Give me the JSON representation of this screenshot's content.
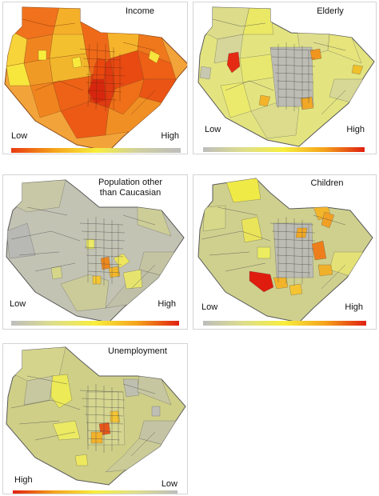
{
  "figure": {
    "panels": [
      {
        "id": "income",
        "title_lines": [
          "Income"
        ],
        "legend_left": "Low",
        "legend_right": "High",
        "ramp": [
          "#e83a10",
          "#f5a21c",
          "#f7ee3c",
          "#cfcfa0",
          "#bdbdbd"
        ],
        "base_fill": "#f2a43a",
        "line_color": "#8a4a1c"
      },
      {
        "id": "elderly",
        "title_lines": [
          "Elderly"
        ],
        "legend_left": "Low",
        "legend_right": "High",
        "ramp": [
          "#bdbdbd",
          "#dede8c",
          "#f7ee3c",
          "#f5a21c",
          "#e02010"
        ],
        "base_fill": "#e3e480",
        "line_color": "#5a5a5a"
      },
      {
        "id": "non-caucasian",
        "title_lines": [
          "Population other",
          "than Caucasian"
        ],
        "legend_left": "Low",
        "legend_right": "High",
        "ramp": [
          "#bdbdbd",
          "#dede8c",
          "#f7ee3c",
          "#f5a21c",
          "#e02010"
        ],
        "base_fill": "#c3c3b4",
        "line_color": "#5a5a5a"
      },
      {
        "id": "children",
        "title_lines": [
          "Children"
        ],
        "legend_left": "Low",
        "legend_right": "High",
        "ramp": [
          "#bdbdbd",
          "#dede8c",
          "#f7ee3c",
          "#f5a21c",
          "#e02010"
        ],
        "base_fill": "#cfd08e",
        "line_color": "#5a5a5a"
      },
      {
        "id": "unemployment",
        "title_lines": [
          "Unemployment"
        ],
        "legend_left": "High",
        "legend_right": "Low",
        "ramp": [
          "#e02010",
          "#f5a21c",
          "#f7ee3c",
          "#dede8c",
          "#bdbdbd"
        ],
        "base_fill": "#cfcf88",
        "line_color": "#5a5a5a"
      }
    ]
  }
}
